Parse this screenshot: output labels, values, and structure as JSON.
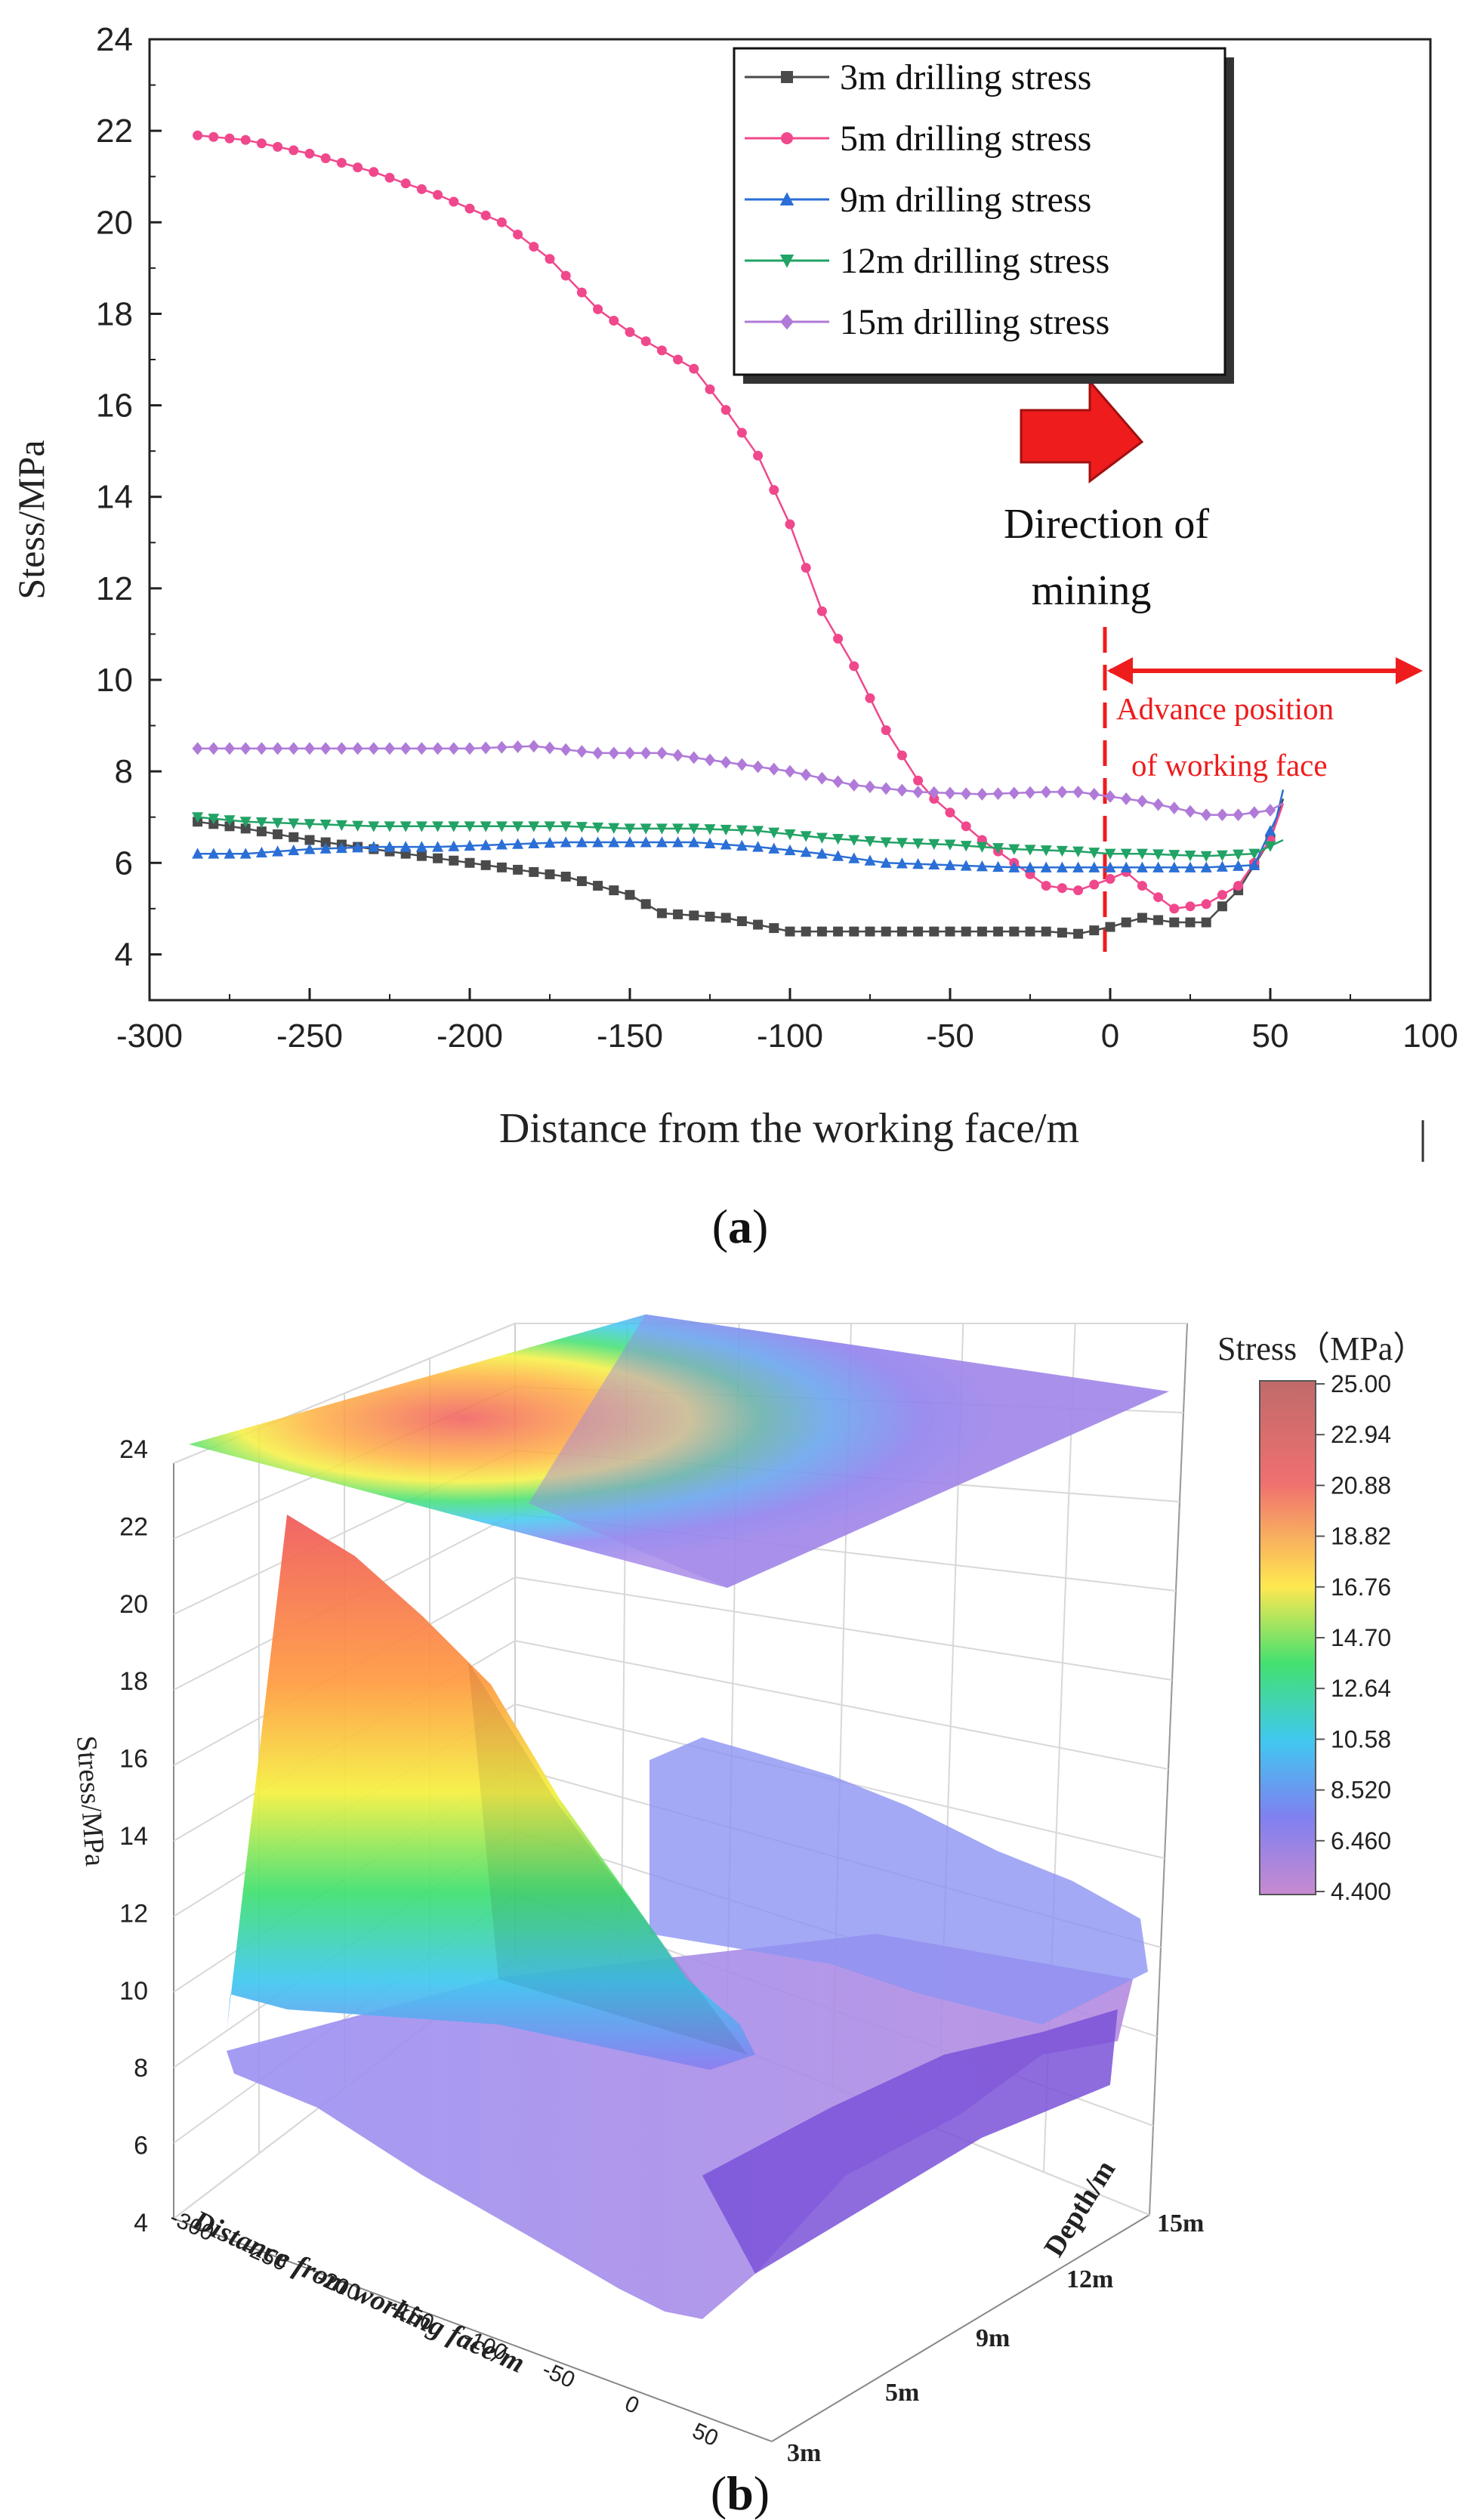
{
  "chart_data": [
    {
      "panel": "(a)",
      "type": "line",
      "xlabel": "Distance from the working face/m",
      "ylabel": "Stess/MPa",
      "xlim": [
        -300,
        100
      ],
      "ylim": [
        3,
        24
      ],
      "xticks": [
        "-300",
        "-250",
        "-200",
        "-150",
        "-100",
        "-50",
        "0",
        "50",
        "100"
      ],
      "yticks": [
        "4",
        "6",
        "8",
        "10",
        "12",
        "14",
        "16",
        "18",
        "20",
        "22",
        "24"
      ],
      "legend_position": "top-right",
      "series": [
        {
          "name": "3m drilling stress",
          "color": "#4a4a4a",
          "marker": "square",
          "x": [
            -285,
            -270,
            -250,
            -230,
            -210,
            -190,
            -170,
            -150,
            -140,
            -120,
            -100,
            -80,
            -60,
            -40,
            -20,
            -10,
            0,
            10,
            20,
            30,
            40,
            50,
            54
          ],
          "y": [
            6.9,
            6.75,
            6.5,
            6.3,
            6.1,
            5.9,
            5.7,
            5.3,
            4.9,
            4.8,
            4.5,
            4.5,
            4.5,
            4.5,
            4.5,
            4.45,
            4.6,
            4.8,
            4.7,
            4.7,
            5.4,
            6.5,
            7.4
          ]
        },
        {
          "name": "5m drilling stress",
          "color": "#f0488c",
          "marker": "circle",
          "x": [
            -285,
            -270,
            -250,
            -230,
            -210,
            -190,
            -175,
            -160,
            -150,
            -130,
            -120,
            -110,
            -100,
            -90,
            -80,
            -70,
            -60,
            -55,
            -50,
            -40,
            -30,
            -20,
            -10,
            0,
            5,
            10,
            20,
            30,
            40,
            50,
            54
          ],
          "y": [
            21.9,
            21.8,
            21.5,
            21.1,
            20.6,
            20.0,
            19.2,
            18.1,
            17.6,
            16.8,
            15.9,
            14.9,
            13.4,
            11.5,
            10.3,
            8.9,
            7.8,
            7.4,
            7.1,
            6.5,
            6.0,
            5.5,
            5.4,
            5.65,
            5.8,
            5.5,
            5.0,
            5.1,
            5.5,
            6.5,
            7.3
          ]
        },
        {
          "name": "9m drilling stress",
          "color": "#2b6fd6",
          "marker": "triangle-up",
          "x": [
            -285,
            -270,
            -250,
            -230,
            -210,
            -190,
            -170,
            -150,
            -130,
            -110,
            -90,
            -70,
            -50,
            -30,
            -10,
            0,
            10,
            30,
            45,
            52,
            54
          ],
          "y": [
            6.2,
            6.2,
            6.3,
            6.35,
            6.35,
            6.4,
            6.45,
            6.45,
            6.45,
            6.35,
            6.2,
            6.0,
            5.95,
            5.9,
            5.9,
            5.9,
            5.9,
            5.9,
            5.95,
            7.0,
            7.6
          ]
        },
        {
          "name": "12m drilling stress",
          "color": "#22a366",
          "marker": "triangle-down",
          "x": [
            -285,
            -270,
            -250,
            -230,
            -210,
            -190,
            -170,
            -150,
            -130,
            -110,
            -90,
            -70,
            -50,
            -30,
            -10,
            0,
            10,
            30,
            45,
            54
          ],
          "y": [
            7.0,
            6.9,
            6.85,
            6.8,
            6.8,
            6.8,
            6.8,
            6.75,
            6.75,
            6.7,
            6.55,
            6.45,
            6.4,
            6.3,
            6.25,
            6.2,
            6.2,
            6.15,
            6.2,
            6.5
          ]
        },
        {
          "name": "15m drilling stress",
          "color": "#b07ad8",
          "marker": "diamond",
          "x": [
            -285,
            -260,
            -240,
            -220,
            -200,
            -180,
            -160,
            -140,
            -120,
            -100,
            -80,
            -60,
            -40,
            -20,
            -10,
            0,
            10,
            20,
            30,
            40,
            50,
            54
          ],
          "y": [
            8.5,
            8.5,
            8.5,
            8.5,
            8.5,
            8.55,
            8.4,
            8.4,
            8.2,
            8.0,
            7.7,
            7.55,
            7.5,
            7.55,
            7.55,
            7.45,
            7.35,
            7.2,
            7.05,
            7.05,
            7.15,
            7.3
          ]
        }
      ],
      "annotations": {
        "direction": [
          "Direction of",
          "mining"
        ],
        "advance": [
          "Advance position",
          "of working face"
        ],
        "working_face_x": 0,
        "advance_range": [
          0,
          100
        ]
      },
      "panel_label": "a"
    },
    {
      "panel": "(b)",
      "type": "surface3d",
      "xlabel": "Distance from working face/m",
      "ylabel": "Depth/m",
      "zlabel": "Stress/MPa",
      "xticks": [
        "-300",
        "-250",
        "-200",
        "-150",
        "-100",
        "-50",
        "0",
        "50"
      ],
      "yticks": [
        "3m",
        "5m",
        "9m",
        "12m",
        "15m"
      ],
      "zticks": [
        "4",
        "6",
        "8",
        "10",
        "12",
        "14",
        "16",
        "18",
        "20",
        "22",
        "24"
      ],
      "colorbar_title": "Stress（MPa）",
      "colorbar_ticks": [
        "25.00",
        "22.94",
        "20.88",
        "18.82",
        "16.76",
        "14.70",
        "12.64",
        "10.58",
        "8.520",
        "6.460",
        "4.400"
      ],
      "colorbar_range": [
        4.4,
        25.0
      ],
      "panel_label": "b"
    }
  ]
}
